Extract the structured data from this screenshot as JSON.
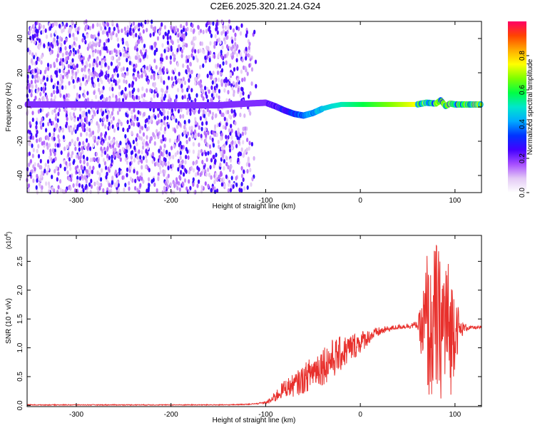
{
  "title": "C2E6.2025.320.21.24.G24",
  "colors": {
    "spectrogram_bg": "#ffffff",
    "line": "#e8302c",
    "axis": "#000000"
  },
  "chart_data": [
    {
      "type": "heatmap",
      "name": "spectrogram",
      "xlabel": "Height of straight line (km)",
      "ylabel": "Frequency (Hz)",
      "xlim": [
        -352,
        128
      ],
      "ylim": [
        -50,
        50
      ],
      "xticks": [
        -300,
        -200,
        -100,
        0,
        100
      ],
      "xtick_labels": [
        "-300",
        "-200",
        "-100",
        "0",
        "100"
      ],
      "yticks": [
        -40,
        -20,
        0,
        20,
        40
      ],
      "ytick_labels": [
        "-40",
        "-20",
        "0",
        "20",
        "40"
      ],
      "colorbar": {
        "label": "Normalized spectral amplitude",
        "range": [
          0,
          1
        ],
        "ticks": [
          0.0,
          0.2,
          0.4,
          0.6,
          0.8
        ],
        "tick_labels": [
          "0.0",
          "0.2",
          "0.4",
          "0.6",
          "0.8"
        ],
        "colormap": [
          "#ffffff",
          "#e3c9f5",
          "#a64dff",
          "#4400ff",
          "#0033ff",
          "#00aaff",
          "#00e6cc",
          "#00ff44",
          "#7cff00",
          "#ffff00",
          "#ffaa00",
          "#ff4400",
          "#ff0066"
        ]
      },
      "ridge": {
        "x": [
          -352,
          -300,
          -250,
          -200,
          -150,
          -120,
          -100,
          -90,
          -80,
          -70,
          -60,
          -50,
          -40,
          -30,
          -20,
          -10,
          0,
          20,
          40,
          60,
          70,
          80,
          85,
          90,
          95,
          100,
          110,
          128
        ],
        "y": [
          1.5,
          1.5,
          1.2,
          1.0,
          1.0,
          2.0,
          2.5,
          0.5,
          -2,
          -4,
          -5,
          -3.5,
          -1,
          0.5,
          1.5,
          1.5,
          1.5,
          1.5,
          1.5,
          1.5,
          2.5,
          2.0,
          4.0,
          0.5,
          2.0,
          1.5,
          1.5,
          1.5
        ]
      },
      "noise_until_km": -110
    },
    {
      "type": "line",
      "name": "snr",
      "xlabel": "Height of straight line (km)",
      "ylabel": "SNR (10 * v/v)",
      "y_multiplier_label": "(x10",
      "y_multiplier_exp": "4",
      "xlim": [
        -352,
        128
      ],
      "ylim": [
        -0.02,
        2.95
      ],
      "xticks": [
        -300,
        -200,
        -100,
        0,
        100
      ],
      "xtick_labels": [
        "-300",
        "-200",
        "-100",
        "0",
        "100"
      ],
      "yticks": [
        0.0,
        0.5,
        1.0,
        1.5,
        2.0,
        2.5
      ],
      "ytick_labels": [
        "0.0",
        "0.5",
        "1.0",
        "1.5",
        "2.0",
        "2.5"
      ],
      "x": [
        -352,
        -300,
        -200,
        -140,
        -120,
        -110,
        -100,
        -95,
        -90,
        -80,
        -70,
        -60,
        -50,
        -40,
        -30,
        -20,
        -10,
        0,
        10,
        20,
        30,
        40,
        50,
        60,
        65,
        70,
        75,
        80,
        85,
        90,
        95,
        100,
        105,
        110,
        115,
        120,
        128
      ],
      "y": [
        0.01,
        0.01,
        0.01,
        0.01,
        0.02,
        0.03,
        0.05,
        0.08,
        0.15,
        0.3,
        0.35,
        0.45,
        0.6,
        0.7,
        0.8,
        0.9,
        1.0,
        1.1,
        1.2,
        1.28,
        1.33,
        1.36,
        1.38,
        1.4,
        1.3,
        1.4,
        1.2,
        1.5,
        1.3,
        1.5,
        1.2,
        1.45,
        1.3,
        1.35,
        1.35,
        1.35,
        1.35
      ],
      "y_spread": [
        0,
        0,
        0,
        0,
        0.01,
        0.01,
        0.02,
        0.05,
        0.1,
        0.15,
        0.2,
        0.25,
        0.3,
        0.35,
        0.35,
        0.3,
        0.25,
        0.2,
        0.12,
        0.08,
        0.05,
        0.04,
        0.05,
        0.06,
        0.5,
        1.4,
        1.1,
        1.5,
        1.2,
        1.4,
        1.1,
        0.8,
        0.2,
        0.08,
        0.04,
        0.03,
        0.03
      ]
    }
  ]
}
